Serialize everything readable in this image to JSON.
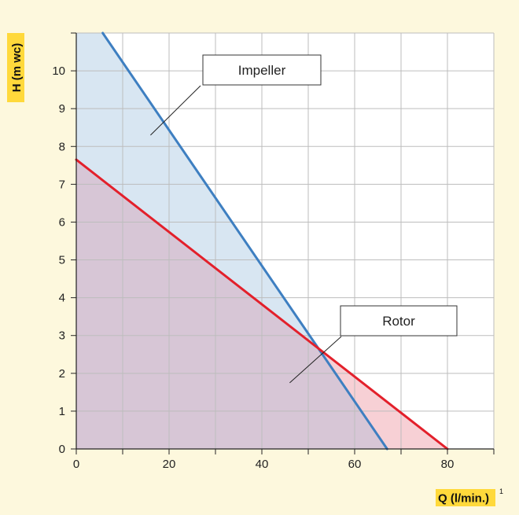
{
  "colors": {
    "background": "#fdf8dd",
    "label_highlight": "#ffd93b",
    "grid": "#bdbdbd",
    "axis": "#222222",
    "impeller_line": "#3e7fc1",
    "impeller_fill": "#d8e6f2",
    "rotor_line": "#e3202b",
    "rotor_fill": "#f7d0d5",
    "overlap_fill": "#d7c6d6"
  },
  "chart_data": {
    "type": "line",
    "ylabel": "H (m wc)",
    "xlabel": "Q (l/min.)",
    "xlabel_superscript": "1",
    "xlim": [
      0,
      90
    ],
    "ylim": [
      0,
      11
    ],
    "x_ticks": [
      0,
      20,
      40,
      60,
      80
    ],
    "y_ticks": [
      0,
      1,
      2,
      3,
      4,
      5,
      6,
      7,
      8,
      9,
      10
    ],
    "x_grid_step": 10,
    "y_grid_step": 1,
    "grid": true,
    "series": [
      {
        "name": "Impeller",
        "color": "#3e7fc1",
        "fill": "#d8e6f2",
        "x": [
          5.7,
          67
        ],
        "y": [
          11,
          0
        ]
      },
      {
        "name": "Rotor",
        "color": "#e3202b",
        "fill": "#f7d0d5",
        "x": [
          0,
          80
        ],
        "y": [
          7.65,
          0
        ]
      }
    ],
    "annotations": [
      {
        "text": "Impeller",
        "target": [
          16,
          8.3
        ]
      },
      {
        "text": "Rotor",
        "target": [
          46,
          1.75
        ]
      }
    ]
  }
}
